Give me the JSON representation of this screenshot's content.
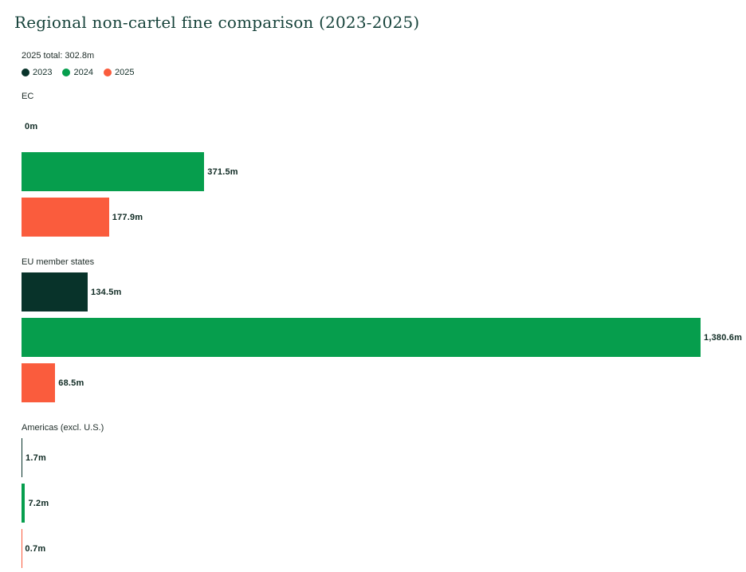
{
  "chart_data": {
    "type": "bar",
    "orientation": "horizontal",
    "title": "Regional non-cartel fine comparison (2023-2025)",
    "subtitle": "2025 total: 302.8m",
    "unit": "m",
    "categories": [
      "EC",
      "EU member states",
      "Americas (excl. U.S.)"
    ],
    "series": [
      {
        "name": "2023",
        "color": "#08332a",
        "values": [
          0,
          134.5,
          1.7
        ],
        "labels": [
          "0m",
          "134.5m",
          "1.7m"
        ]
      },
      {
        "name": "2024",
        "color": "#069e4d",
        "values": [
          371.5,
          1380.6,
          7.2
        ],
        "labels": [
          "371.5m",
          "1,380.6m",
          "7.2m"
        ]
      },
      {
        "name": "2025",
        "color": "#fa5c3d",
        "values": [
          177.9,
          68.5,
          0.7
        ],
        "labels": [
          "177.9m",
          "68.5m",
          "0.7m"
        ]
      }
    ],
    "xlim": [
      0,
      1380.6
    ],
    "legend_position": "top-left",
    "grid": false
  },
  "colors": {
    "background": "#ffffff",
    "title_text": "#17433b",
    "body_text": "#1d2b27",
    "value_label_text": "#102b24"
  }
}
